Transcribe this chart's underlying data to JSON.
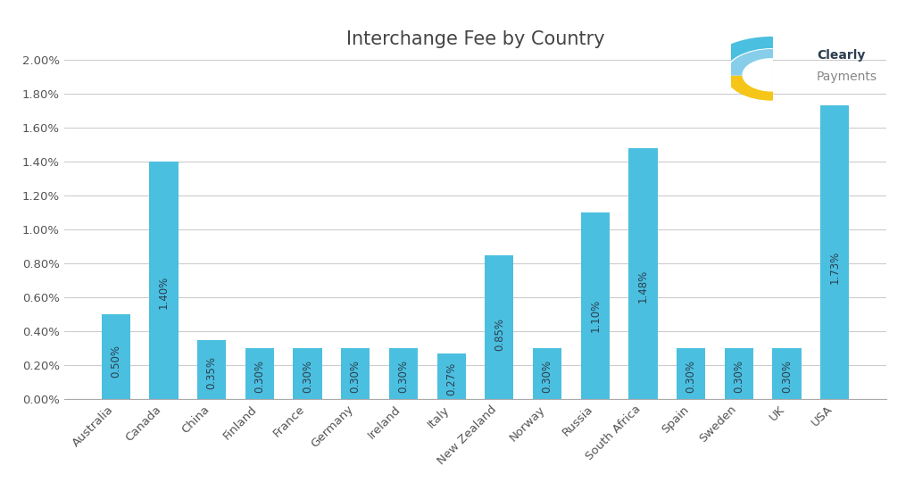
{
  "title": "Interchange Fee by Country",
  "categories": [
    "Australia",
    "Canada",
    "China",
    "Finland",
    "France",
    "Germany",
    "Ireland",
    "Italy",
    "New Zealand",
    "Norway",
    "Russia",
    "South Africa",
    "Spain",
    "Sweden",
    "UK",
    "USA"
  ],
  "values": [
    0.5,
    1.4,
    0.35,
    0.3,
    0.3,
    0.3,
    0.3,
    0.27,
    0.85,
    0.3,
    1.1,
    1.48,
    0.3,
    0.3,
    0.3,
    1.73
  ],
  "bar_color": "#4BBFDF",
  "label_color": "#2C3E50",
  "background_color": "#FFFFFF",
  "ylim": [
    0,
    2.0
  ],
  "yticks": [
    0.0,
    0.2,
    0.4,
    0.6,
    0.8,
    1.0,
    1.2,
    1.4,
    1.6,
    1.8,
    2.0
  ],
  "title_fontsize": 15,
  "bar_label_fontsize": 8.5,
  "tick_label_fontsize": 9.5,
  "grid_color": "#CCCCCC",
  "logo_clearly_color": "#2C3E50",
  "logo_payments_color": "#888888",
  "logo_blue": "#4BBFDF",
  "logo_lightblue": "#87CEEB",
  "logo_yellow": "#F5C518"
}
